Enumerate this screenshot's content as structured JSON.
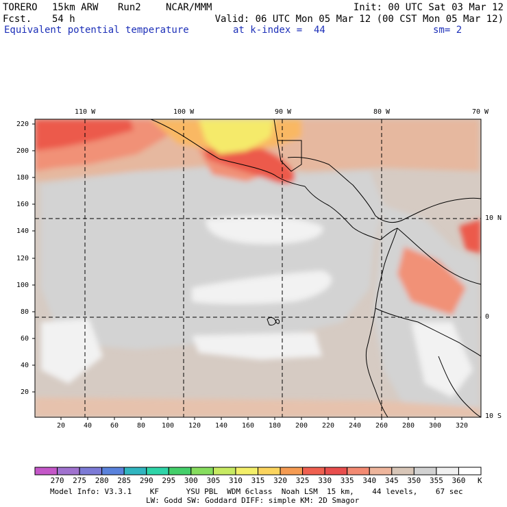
{
  "header": {
    "model": "TORERO",
    "resolution": "15km ARW",
    "run": "Run2",
    "org": "NCAR/MMM",
    "init": "Init: 00 UTC Sat 03 Mar 12",
    "fcst_label": "Fcst.",
    "fcst_value": "54 h",
    "valid": "Valid: 06 UTC Mon 05 Mar 12 (00 CST Mon 05 Mar 12)",
    "field": "Equivalent potential temperature",
    "level": "at k-index =  44",
    "smooth": "sm= 2"
  },
  "top_lon_labels": [
    "110 W",
    "100 W",
    "90 W",
    "80 W",
    "70 W"
  ],
  "right_lat_labels": [
    "10 N",
    "0",
    "10 S"
  ],
  "left_y_ticks": [
    "220",
    "200",
    "180",
    "160",
    "140",
    "120",
    "100",
    "80",
    "60",
    "40",
    "20"
  ],
  "bottom_x_ticks": [
    "20",
    "40",
    "60",
    "80",
    "100",
    "120",
    "140",
    "160",
    "180",
    "200",
    "220",
    "240",
    "260",
    "280",
    "300",
    "320"
  ],
  "colorbar": {
    "labels": [
      "270",
      "275",
      "280",
      "285",
      "290",
      "295",
      "300",
      "305",
      "310",
      "315",
      "320",
      "325",
      "330",
      "335",
      "340",
      "345",
      "350",
      "355",
      "360"
    ],
    "unit": "K",
    "colors": [
      "#c457c8",
      "#a072cf",
      "#7c7ad6",
      "#5a82dc",
      "#31b5c0",
      "#2ed4a8",
      "#44cf6a",
      "#86dd5e",
      "#c7ea62",
      "#f3ef6a",
      "#fbd45e",
      "#f59b52",
      "#ef6050",
      "#e84e4d",
      "#f38a72",
      "#eeb59c",
      "#d8c6b8",
      "#d2d2d2",
      "#f0f0f0",
      "#ffffff"
    ]
  },
  "footer": {
    "line1": "Model Info: V3.3.1    KF      YSU PBL  WDM 6class  Noah LSM  15 km,    44 levels,    67 sec",
    "line2": "LW: Godd SW: Goddard DIFF: simple KM: 2D Smagor"
  }
}
